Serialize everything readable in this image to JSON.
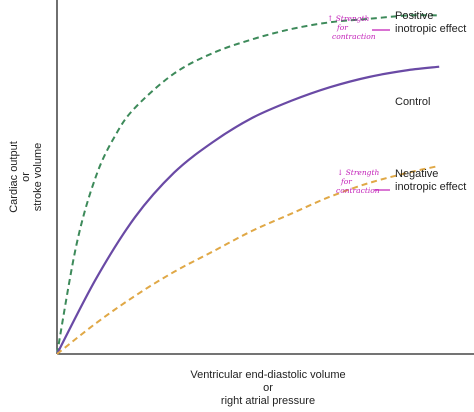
{
  "chart_data": {
    "type": "line",
    "title": "",
    "xlabel_lines": [
      "Ventricular end-diastolic volume",
      "or",
      "right atrial pressure"
    ],
    "ylabel_lines": [
      "Cardiac output",
      "or",
      "stroke volume"
    ],
    "xlim": [
      0,
      100
    ],
    "ylim": [
      0,
      100
    ],
    "grid": false,
    "ticks": false,
    "series": [
      {
        "name_lines": [
          "Positive",
          "inotropic effect"
        ],
        "style": "dashed",
        "color": "#3d8a5a",
        "x": [
          0,
          5,
          10,
          15,
          20,
          30,
          40,
          50,
          60,
          70,
          80,
          90,
          98
        ],
        "y": [
          0,
          32,
          52,
          64,
          72,
          82,
          88,
          92,
          95,
          97,
          98,
          99,
          99
        ]
      },
      {
        "name_lines": [
          "Control"
        ],
        "style": "solid",
        "color": "#6a4aa5",
        "x": [
          0,
          10,
          20,
          30,
          40,
          50,
          60,
          70,
          80,
          90,
          98
        ],
        "y": [
          0,
          22,
          40,
          53,
          62,
          69,
          74,
          78,
          81,
          83,
          84
        ]
      },
      {
        "name_lines": [
          "Negative",
          "inotropic effect"
        ],
        "style": "dashed",
        "color": "#e0a846",
        "x": [
          0,
          10,
          20,
          30,
          40,
          50,
          60,
          70,
          80,
          90,
          98
        ],
        "y": [
          0,
          9,
          17,
          24,
          30,
          36,
          41,
          46,
          50,
          53,
          55
        ]
      }
    ],
    "annotations": [
      {
        "text_lines": [
          "↑ Strength",
          "for",
          "contraction"
        ],
        "color": "#c21fb8"
      },
      {
        "text_lines": [
          "↓ Strength",
          "for",
          "contraction"
        ],
        "color": "#c21fb8"
      }
    ]
  }
}
